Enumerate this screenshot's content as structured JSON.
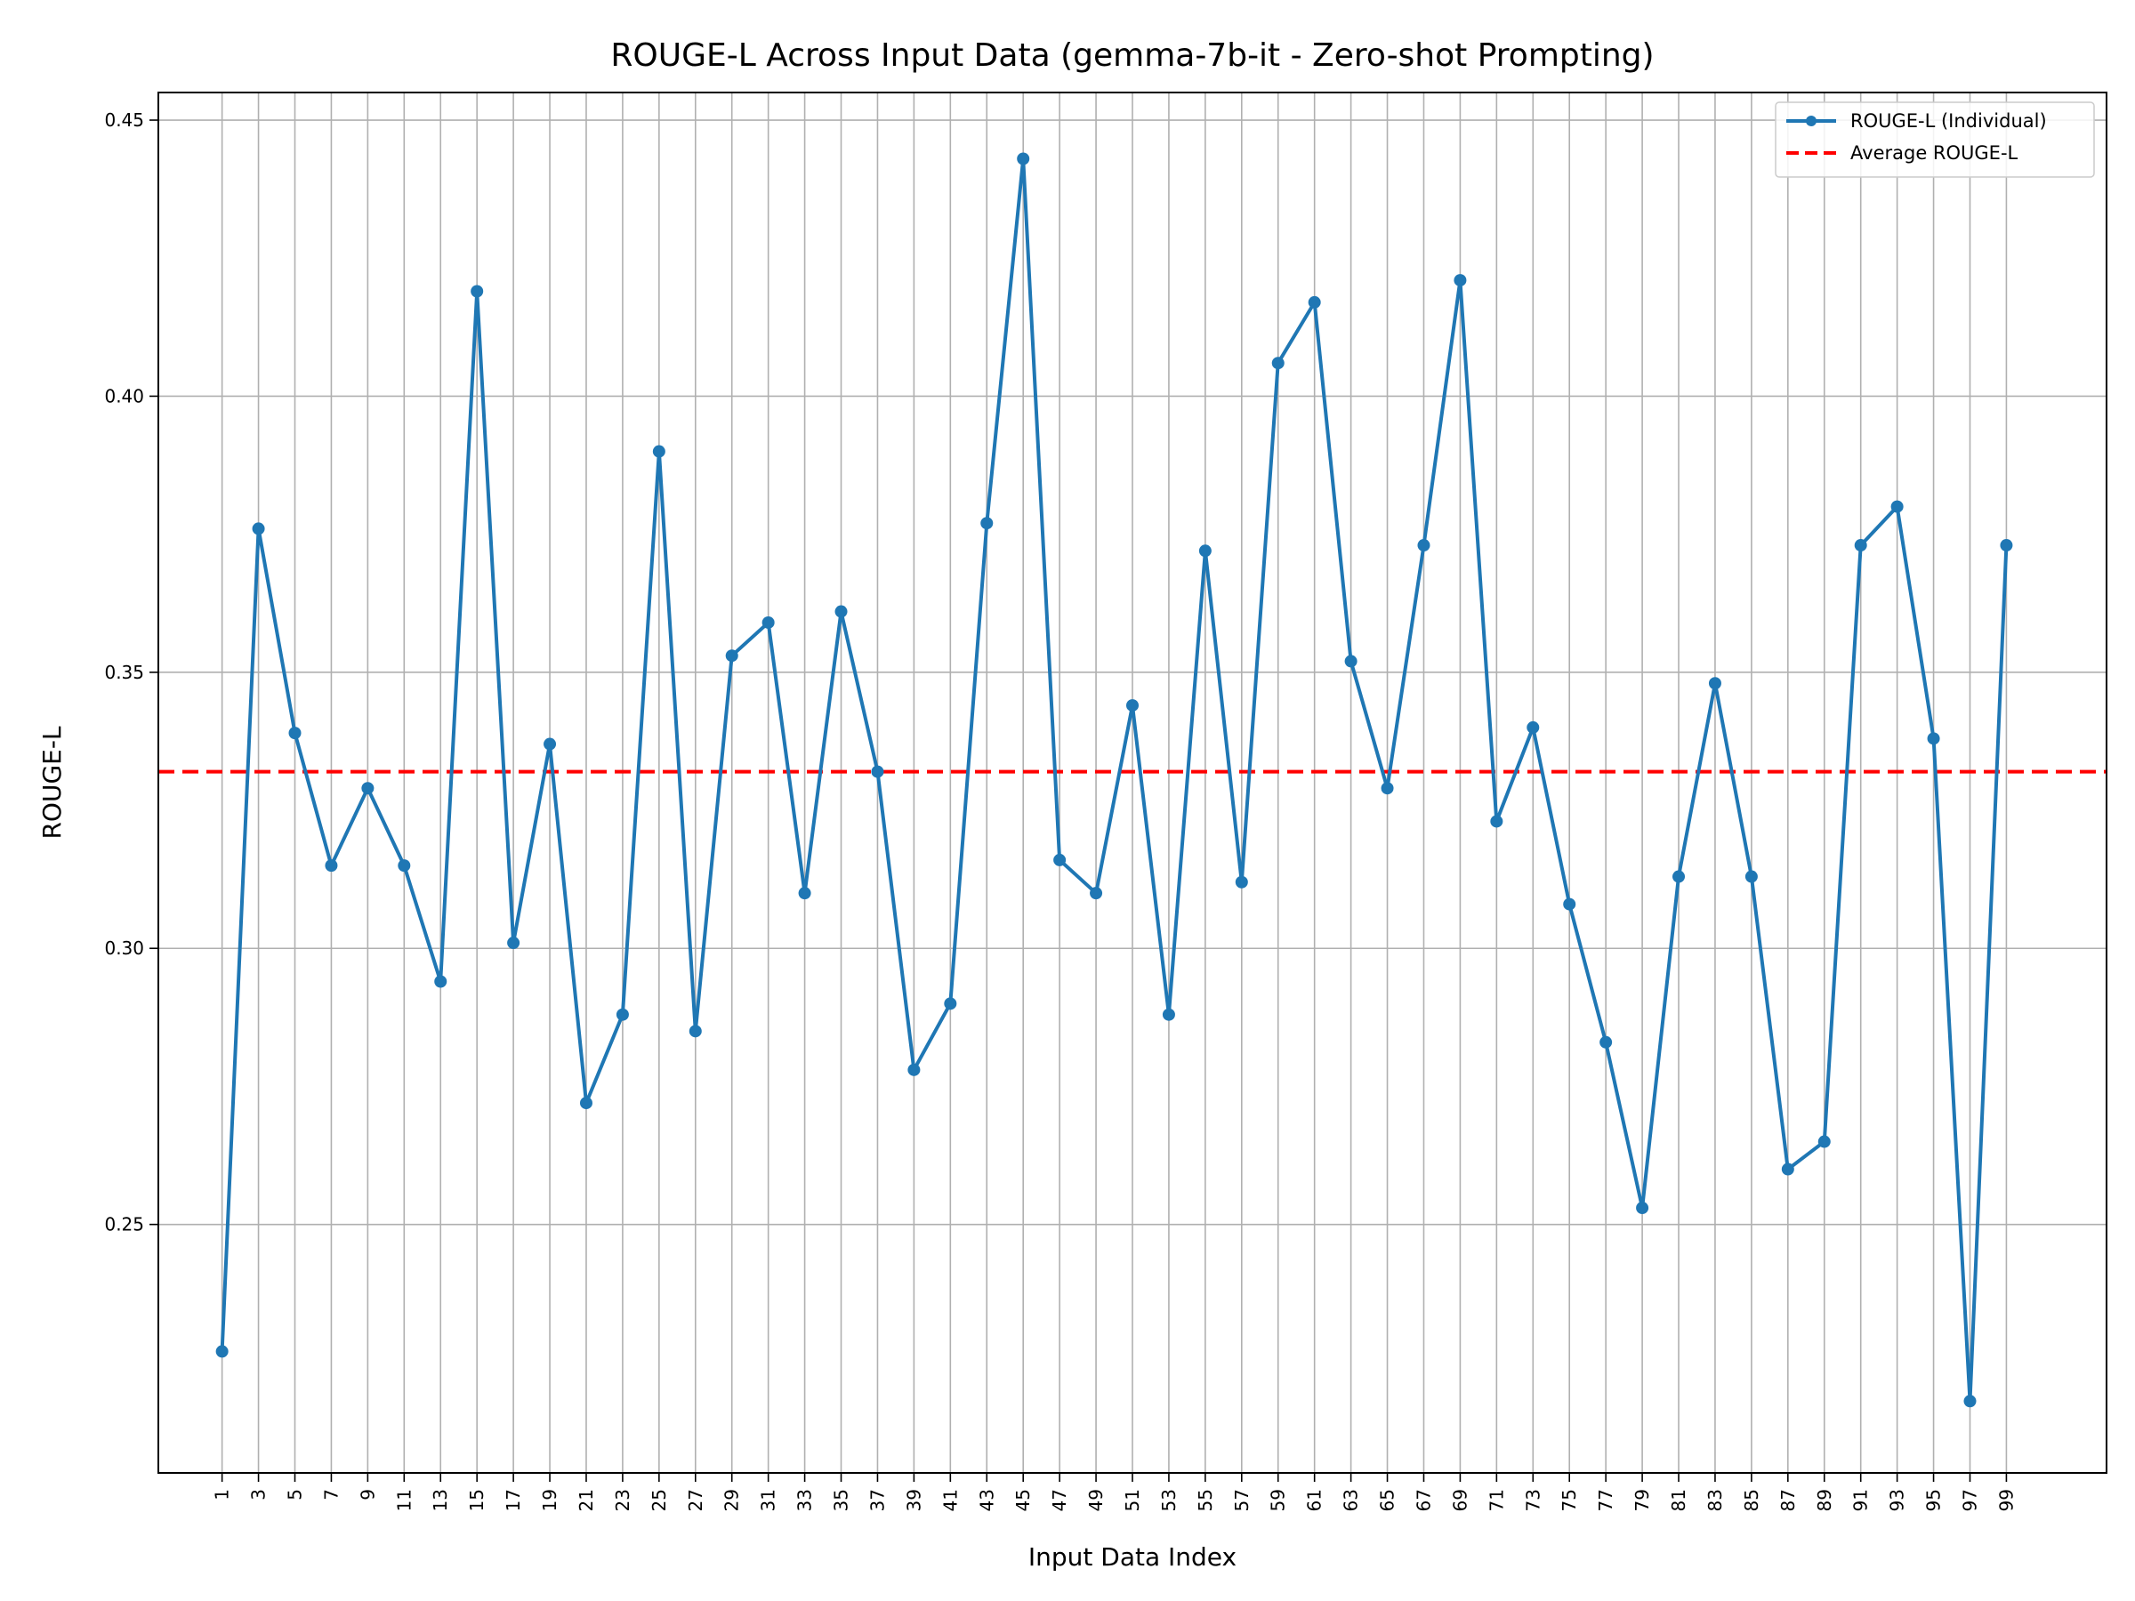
{
  "chart_data": {
    "type": "line",
    "title": "ROUGE-L Across Input Data (gemma-7b-it - Zero-shot Prompting)",
    "xlabel": "Input Data Index",
    "ylabel": "ROUGE-L",
    "xlim": [
      -2.5,
      104.5
    ],
    "ylim": [
      0.205,
      0.455
    ],
    "xticks": [
      1,
      3,
      5,
      7,
      9,
      11,
      13,
      15,
      17,
      19,
      21,
      23,
      25,
      27,
      29,
      31,
      33,
      35,
      37,
      39,
      41,
      43,
      45,
      47,
      49,
      51,
      53,
      55,
      57,
      59,
      61,
      63,
      65,
      67,
      69,
      71,
      73,
      75,
      77,
      79,
      81,
      83,
      85,
      87,
      89,
      91,
      93,
      95,
      97,
      99
    ],
    "yticks": [
      0.25,
      0.3,
      0.35,
      0.4,
      0.45
    ],
    "ytick_labels": [
      "0.25",
      "0.30",
      "0.35",
      "0.40",
      "0.45"
    ],
    "grid": true,
    "legend_placement": "top-right",
    "series": [
      {
        "name": "ROUGE-L (Individual)",
        "color": "#1f77b4",
        "marker": "circle",
        "x": [
          1,
          3,
          5,
          7,
          9,
          11,
          13,
          15,
          17,
          19,
          21,
          23,
          25,
          27,
          29,
          31,
          33,
          35,
          37,
          39,
          41,
          43,
          45,
          47,
          49,
          51,
          53,
          55,
          57,
          59,
          61,
          63,
          65,
          67,
          69,
          71,
          73,
          75,
          77,
          79,
          81,
          83,
          85,
          87,
          89,
          91,
          93,
          95,
          97,
          99
        ],
        "values": [
          0.227,
          0.376,
          0.339,
          0.315,
          0.329,
          0.315,
          0.294,
          0.419,
          0.301,
          0.337,
          0.272,
          0.288,
          0.39,
          0.285,
          0.353,
          0.359,
          0.31,
          0.361,
          0.332,
          0.278,
          0.29,
          0.377,
          0.443,
          0.316,
          0.31,
          0.344,
          0.288,
          0.372,
          0.312,
          0.406,
          0.417,
          0.352,
          0.329,
          0.373,
          0.421,
          0.323,
          0.34,
          0.308,
          0.283,
          0.253,
          0.313,
          0.348,
          0.313,
          0.26,
          0.265,
          0.373,
          0.38,
          0.338,
          0.218,
          0.373
        ]
      }
    ],
    "average": {
      "name": "Average ROUGE-L",
      "value": 0.332,
      "color": "#ff0000",
      "style": "dashed"
    }
  }
}
